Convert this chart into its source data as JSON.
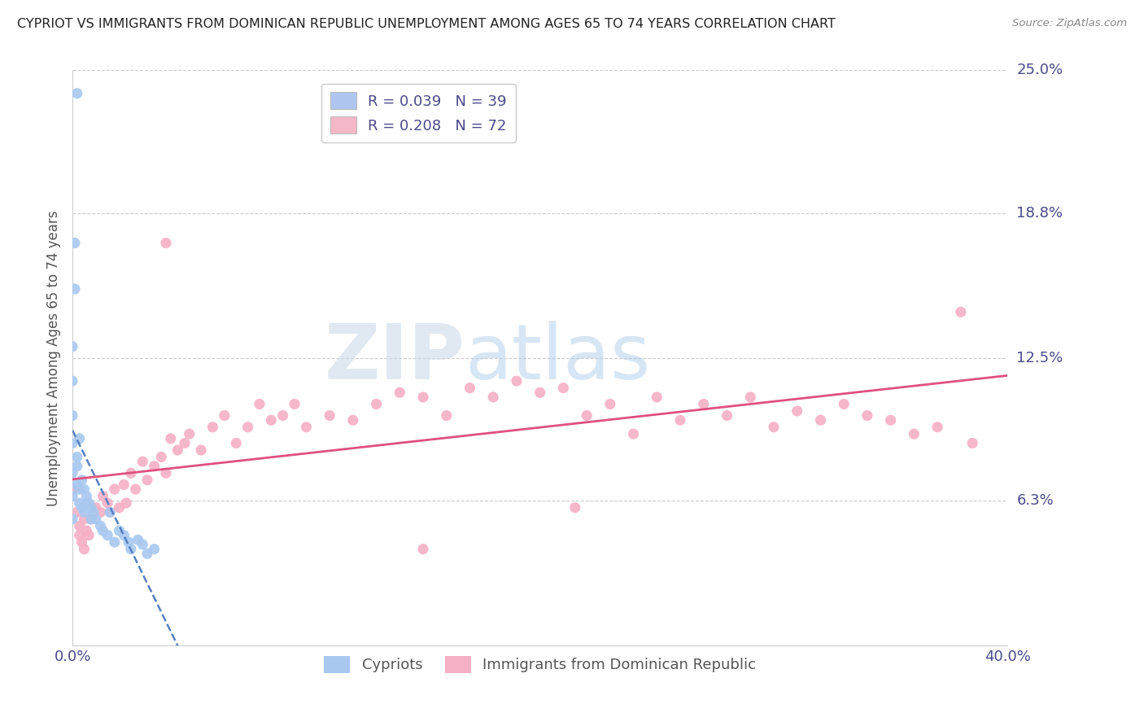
{
  "title": "CYPRIOT VS IMMIGRANTS FROM DOMINICAN REPUBLIC UNEMPLOYMENT AMONG AGES 65 TO 74 YEARS CORRELATION CHART",
  "source": "Source: ZipAtlas.com",
  "ylabel": "Unemployment Among Ages 65 to 74 years",
  "xlim": [
    0.0,
    0.4
  ],
  "ylim": [
    0.0,
    0.25
  ],
  "ytick_labels_right": [
    "25.0%",
    "18.8%",
    "12.5%",
    "6.3%"
  ],
  "ytick_values_right": [
    0.25,
    0.188,
    0.125,
    0.063
  ],
  "legend_color1": "#aec6f0",
  "legend_color2": "#f5b8c8",
  "scatter_color1": "#a8c8f0",
  "scatter_color2": "#f5b0c5",
  "line_color1": "#5580c0",
  "line_color2": "#e05080",
  "background_color": "#ffffff",
  "cypriot_x": [
    0.002,
    0.001,
    0.001,
    0.0,
    0.0,
    0.0,
    0.0,
    0.0,
    0.0,
    0.0,
    0.003,
    0.002,
    0.002,
    0.002,
    0.003,
    0.003,
    0.004,
    0.004,
    0.005,
    0.005,
    0.006,
    0.007,
    0.008,
    0.008,
    0.009,
    0.01,
    0.012,
    0.013,
    0.015,
    0.016,
    0.018,
    0.02,
    0.022,
    0.024,
    0.025,
    0.028,
    0.03,
    0.032,
    0.035
  ],
  "cypriot_y": [
    0.24,
    0.175,
    0.155,
    0.13,
    0.115,
    0.1,
    0.088,
    0.075,
    0.065,
    0.055,
    0.09,
    0.082,
    0.078,
    0.07,
    0.068,
    0.062,
    0.072,
    0.06,
    0.068,
    0.058,
    0.065,
    0.062,
    0.06,
    0.055,
    0.058,
    0.055,
    0.052,
    0.05,
    0.048,
    0.058,
    0.045,
    0.05,
    0.048,
    0.045,
    0.042,
    0.046,
    0.044,
    0.04,
    0.042
  ],
  "dominican_x": [
    0.001,
    0.002,
    0.003,
    0.003,
    0.004,
    0.005,
    0.005,
    0.006,
    0.007,
    0.008,
    0.01,
    0.012,
    0.013,
    0.015,
    0.016,
    0.018,
    0.02,
    0.022,
    0.023,
    0.025,
    0.027,
    0.03,
    0.032,
    0.035,
    0.038,
    0.04,
    0.042,
    0.045,
    0.048,
    0.05,
    0.055,
    0.06,
    0.065,
    0.07,
    0.075,
    0.08,
    0.085,
    0.09,
    0.095,
    0.1,
    0.11,
    0.12,
    0.13,
    0.14,
    0.15,
    0.16,
    0.17,
    0.18,
    0.19,
    0.2,
    0.21,
    0.215,
    0.22,
    0.23,
    0.24,
    0.25,
    0.26,
    0.27,
    0.28,
    0.29,
    0.3,
    0.31,
    0.32,
    0.33,
    0.34,
    0.35,
    0.36,
    0.37,
    0.38,
    0.385,
    0.04,
    0.15
  ],
  "dominican_y": [
    0.068,
    0.058,
    0.052,
    0.048,
    0.045,
    0.055,
    0.042,
    0.05,
    0.048,
    0.055,
    0.06,
    0.058,
    0.065,
    0.062,
    0.058,
    0.068,
    0.06,
    0.07,
    0.062,
    0.075,
    0.068,
    0.08,
    0.072,
    0.078,
    0.082,
    0.075,
    0.09,
    0.085,
    0.088,
    0.092,
    0.085,
    0.095,
    0.1,
    0.088,
    0.095,
    0.105,
    0.098,
    0.1,
    0.105,
    0.095,
    0.1,
    0.098,
    0.105,
    0.11,
    0.108,
    0.1,
    0.112,
    0.108,
    0.115,
    0.11,
    0.112,
    0.06,
    0.1,
    0.105,
    0.092,
    0.108,
    0.098,
    0.105,
    0.1,
    0.108,
    0.095,
    0.102,
    0.098,
    0.105,
    0.1,
    0.098,
    0.092,
    0.095,
    0.145,
    0.088,
    0.175,
    0.042
  ]
}
